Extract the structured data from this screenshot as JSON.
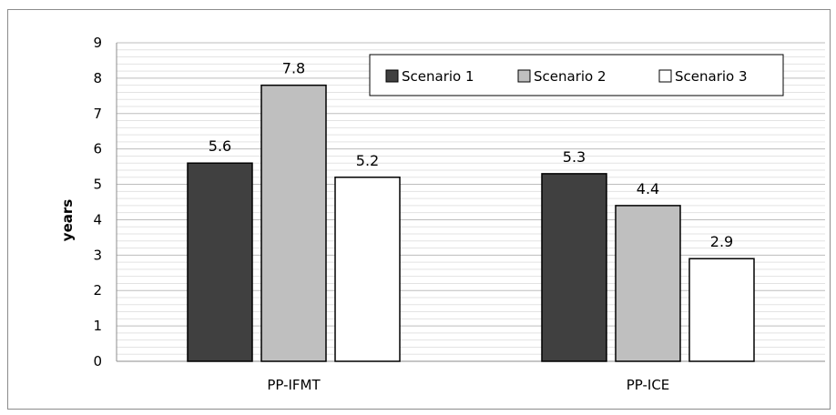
{
  "chart_data": {
    "type": "bar",
    "categories": [
      "PP-IFMT",
      "PP-ICE"
    ],
    "series": [
      {
        "name": "Scenario 1",
        "values": [
          5.6,
          5.3
        ],
        "color": "#404040",
        "labels": [
          "5.6",
          "5.3"
        ]
      },
      {
        "name": "Scenario 2",
        "values": [
          7.8,
          4.4
        ],
        "color": "#bfbfbf",
        "labels": [
          "7.8",
          "4.4"
        ]
      },
      {
        "name": "Scenario 3",
        "values": [
          5.2,
          2.9
        ],
        "color": "#ffffff",
        "labels": [
          "5.2",
          "2.9"
        ]
      }
    ],
    "ylabel": "years",
    "ylim": [
      0,
      9
    ],
    "yticks": [
      "0",
      "1",
      "2",
      "3",
      "4",
      "5",
      "6",
      "7",
      "8",
      "9"
    ],
    "grid": true,
    "legend_position": "top-right"
  }
}
